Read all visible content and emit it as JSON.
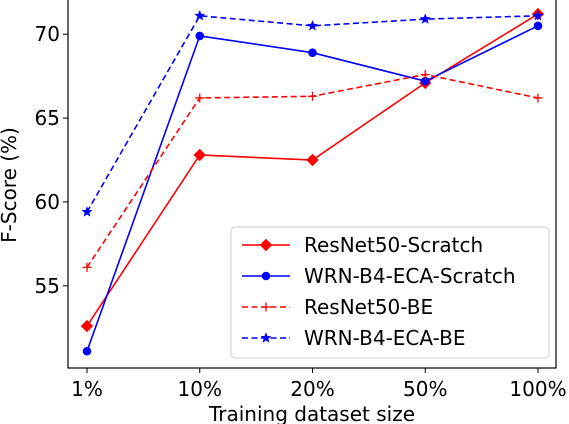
{
  "chart_data": {
    "type": "line",
    "title": "",
    "xlabel": "Training dataset size",
    "ylabel": "F-Score (%)",
    "categories": [
      "1%",
      "10%",
      "20%",
      "50%",
      "100%"
    ],
    "y_ticks": [
      "55",
      "60",
      "65",
      "70"
    ],
    "y_tick_values": [
      55,
      60,
      65,
      70
    ],
    "ylim": [
      50.1,
      72.1
    ],
    "grid": false,
    "legend_position": "lower right",
    "series": [
      {
        "name": "ResNet50-Scratch",
        "values": [
          52.6,
          62.8,
          62.5,
          67.1,
          71.2
        ],
        "color": "#ff0000",
        "linestyle": "solid",
        "marker": "diamond"
      },
      {
        "name": "WRN-B4-ECA-Scratch",
        "values": [
          51.1,
          69.9,
          68.9,
          67.2,
          70.5
        ],
        "color": "#0000ff",
        "linestyle": "solid",
        "marker": "circle"
      },
      {
        "name": "ResNet50-BE",
        "values": [
          56.1,
          66.2,
          66.3,
          67.6,
          66.2
        ],
        "color": "#ff0000",
        "linestyle": "dashed",
        "marker": "plus"
      },
      {
        "name": "WRN-B4-ECA-BE",
        "values": [
          59.4,
          71.1,
          70.5,
          70.9,
          71.1
        ],
        "color": "#0000ff",
        "linestyle": "dashed",
        "marker": "star"
      }
    ]
  }
}
